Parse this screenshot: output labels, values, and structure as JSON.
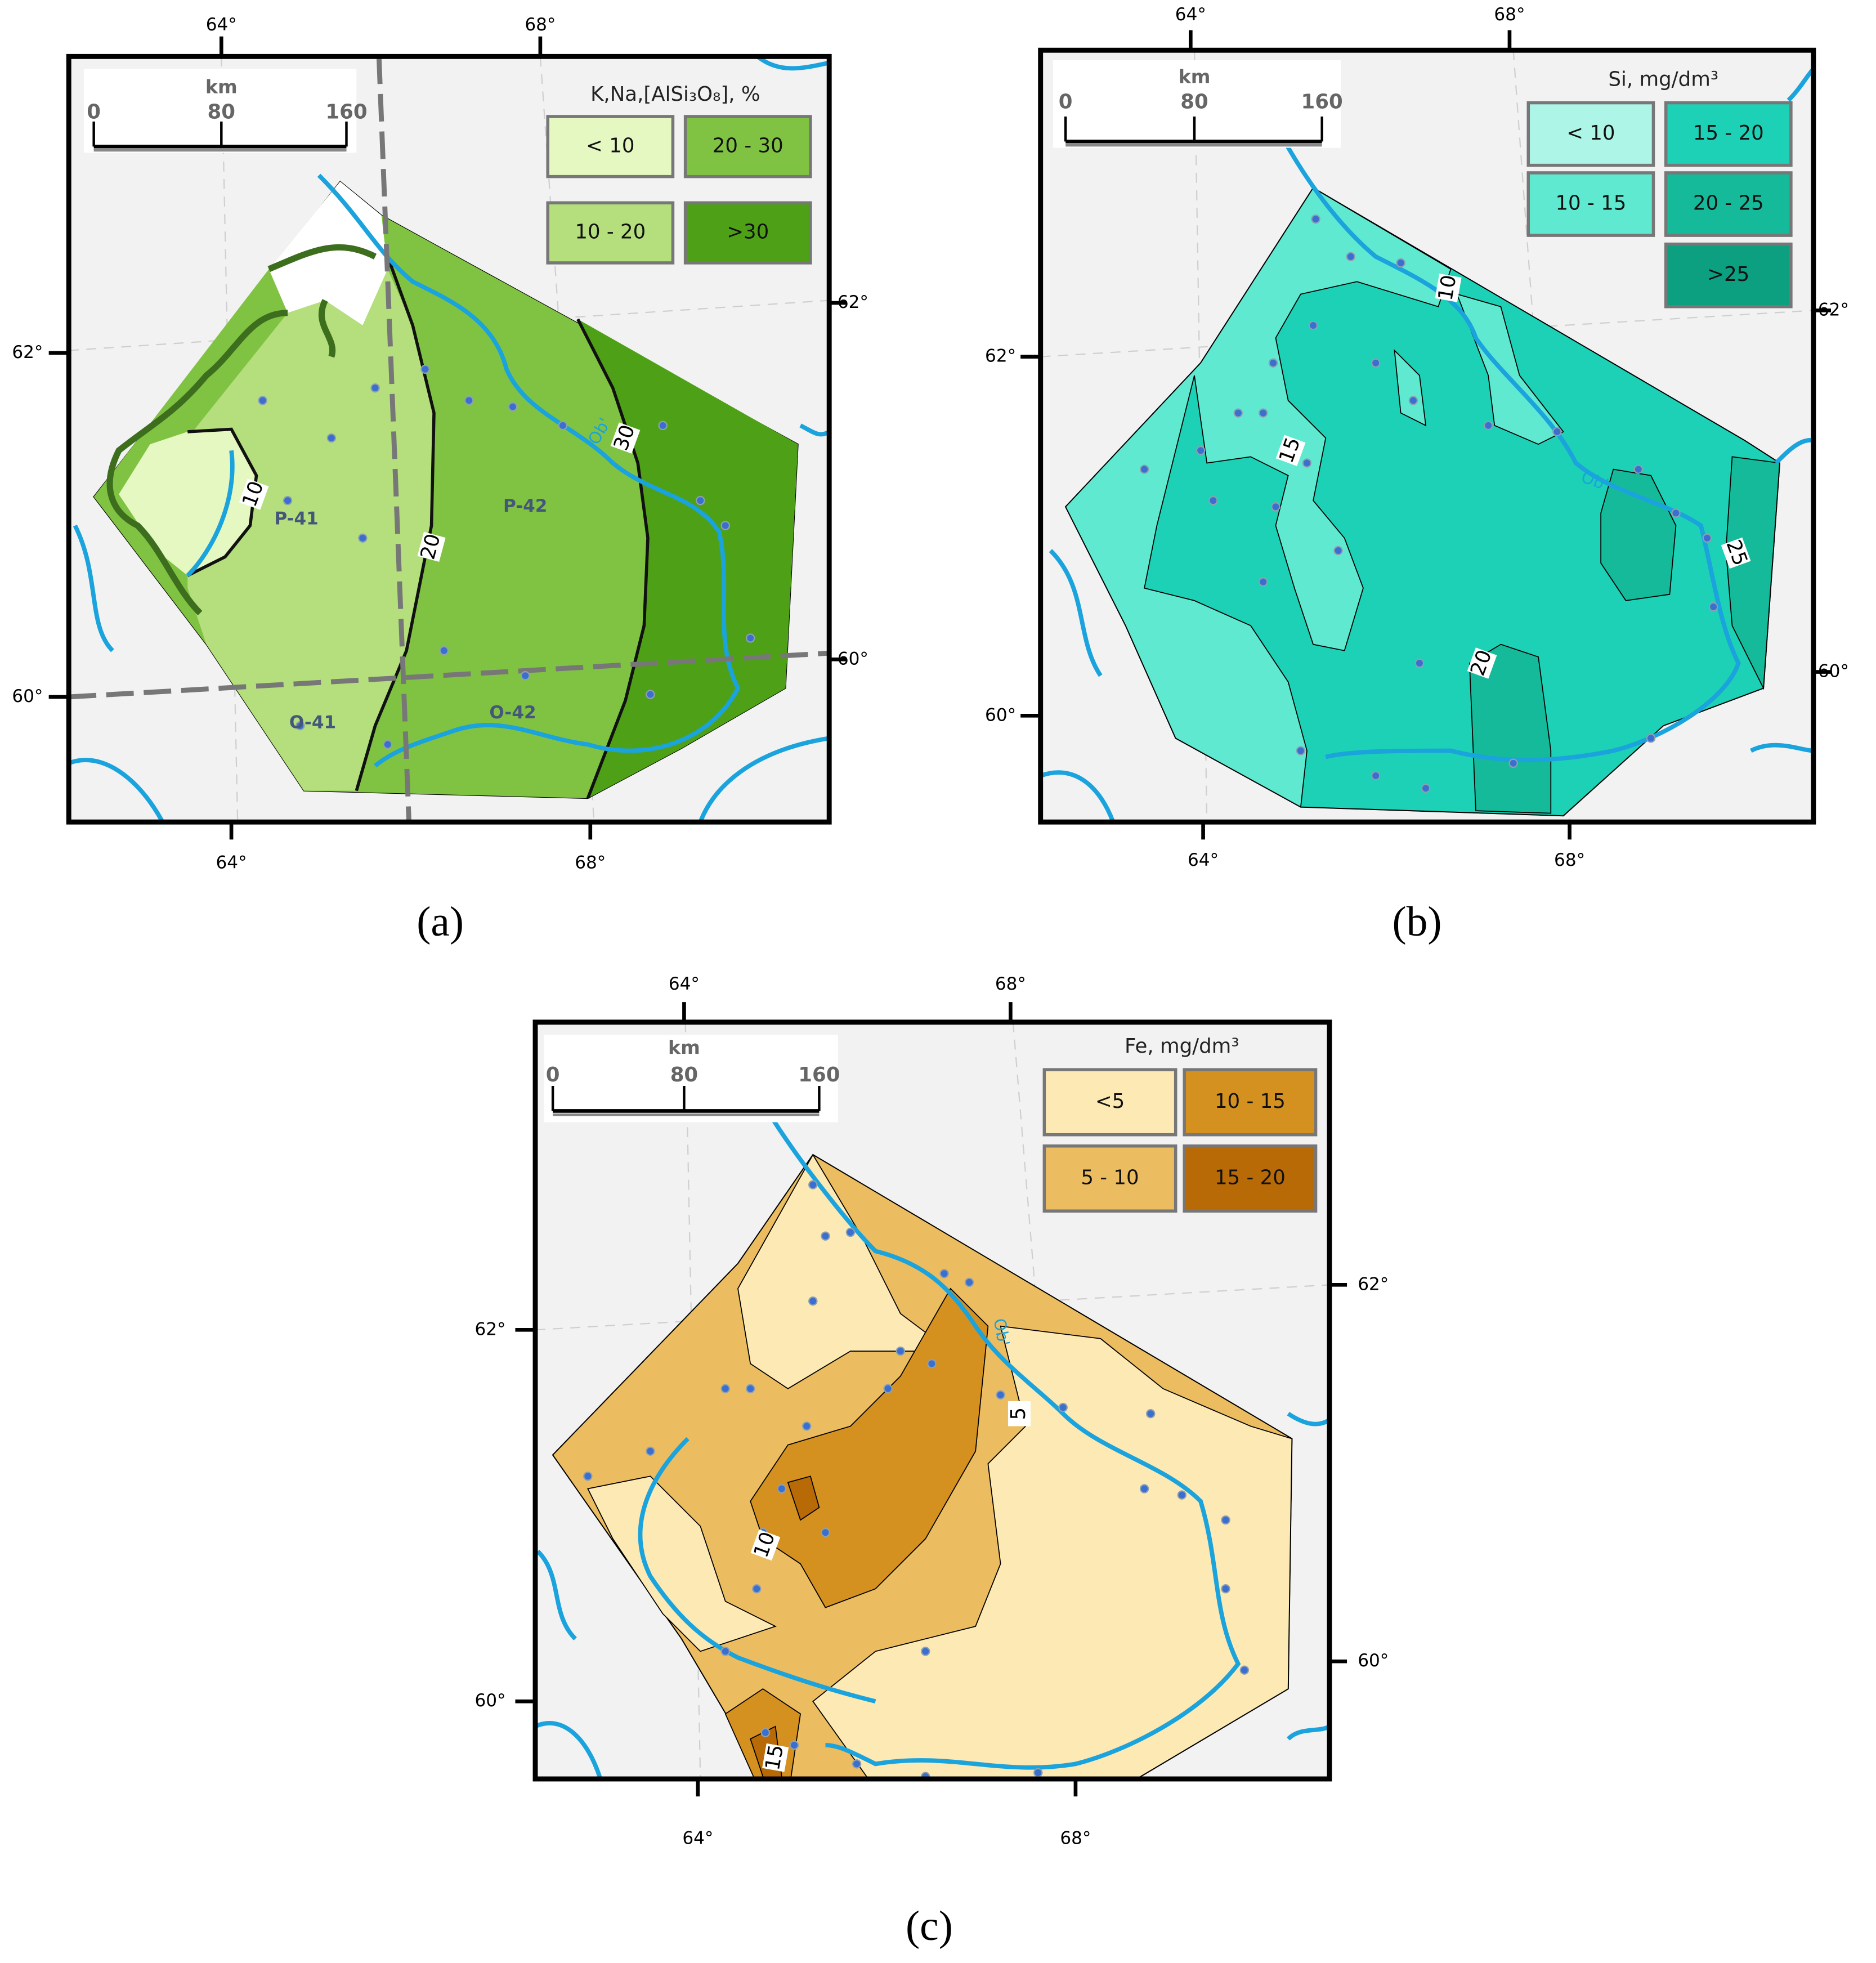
{
  "panels": [
    {
      "caption": "(a)",
      "scale_bar": {
        "unit": "km",
        "ticks": [
          0,
          80,
          160
        ]
      },
      "legend": {
        "title": "K,Na,[AlSi₃O₈], %",
        "items": [
          {
            "label": "< 10",
            "color": "#e6f8c2"
          },
          {
            "label": "20 - 30",
            "color": "#80c342"
          },
          {
            "label": "10 - 20",
            "color": "#b4df7c"
          },
          {
            "label": ">30",
            "color": "#4ea117"
          }
        ]
      },
      "lon_top": [
        "64°",
        "68°"
      ],
      "lon_bottom": [
        "64°",
        "68°"
      ],
      "lat_left": [
        "62°",
        "60°"
      ],
      "lat_right": [
        "62°",
        "60°"
      ],
      "contour_labels": [
        "10",
        "20",
        "30"
      ],
      "sheet_labels": [
        "P-41",
        "P-42",
        "O-41",
        "O-42"
      ],
      "river_label": "Ob'"
    },
    {
      "caption": "(b)",
      "scale_bar": {
        "unit": "km",
        "ticks": [
          0,
          80,
          160
        ]
      },
      "legend": {
        "title": "Si, mg/dm³",
        "items": [
          {
            "label": "< 10",
            "color": "#adf5e6"
          },
          {
            "label": "15 - 20",
            "color": "#1cd1b5"
          },
          {
            "label": "10 - 15",
            "color": "#5fe9d0"
          },
          {
            "label": "20 - 25",
            "color": "#15ba9b"
          },
          {
            "label": ">25",
            "color": "#0c9f80"
          }
        ]
      },
      "lon_top": [
        "64°",
        "68°"
      ],
      "lon_bottom": [
        "64°",
        "68°"
      ],
      "lat_left": [
        "62°",
        "60°"
      ],
      "lat_right": [
        "62°",
        "60°"
      ],
      "contour_labels": [
        "10",
        "15",
        "20",
        "25"
      ],
      "river_label": "Ob'"
    },
    {
      "caption": "(c)",
      "scale_bar": {
        "unit": "km",
        "ticks": [
          0,
          80,
          160
        ]
      },
      "legend": {
        "title": "Fe, mg/dm³",
        "items": [
          {
            "label": "<5",
            "color": "#fde9b4"
          },
          {
            "label": "10 - 15",
            "color": "#d5911f"
          },
          {
            "label": "5 - 10",
            "color": "#ebbd60"
          },
          {
            "label": "15 - 20",
            "color": "#b86a07"
          }
        ]
      },
      "lon_top": [
        "64°",
        "68°"
      ],
      "lon_bottom": [
        "64°",
        "68°"
      ],
      "lat_left": [
        "62°",
        "60°"
      ],
      "lat_right": [
        "62°",
        "60°"
      ],
      "contour_labels": [
        "5",
        "10",
        "15"
      ],
      "river_label": "Ob'"
    }
  ]
}
